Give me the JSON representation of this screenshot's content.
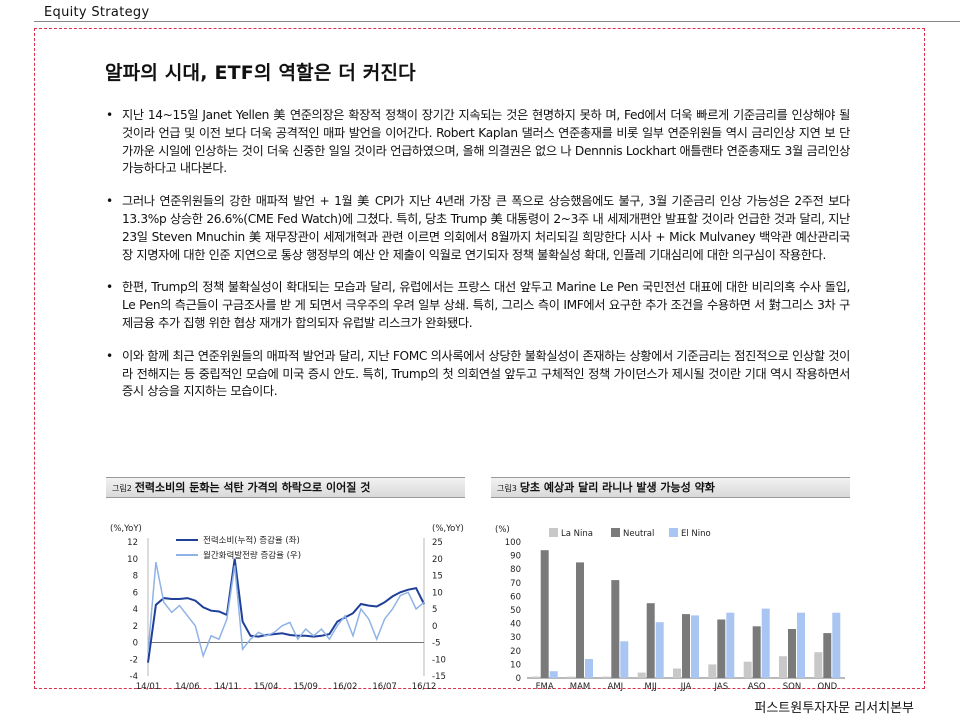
{
  "header": {
    "section_label": "Equity Strategy"
  },
  "title": "알파의 시대, ETF의 역할은 더 커진다",
  "bullets": [
    "지난 14~15일 Janet Yellen 美 연준의장은 확장적 정책이 장기간 지속되는 것은 현명하지 못하 며, Fed에서 더욱 빠르게 기준금리를 인상해야 될 것이라 언급 및 이전 보다 더욱 공격적인 매파 발언을 이어간다. Robert Kaplan 댈러스 연준총재를 비롯 일부 연준위원들 역시 금리인상 지연 보 단 가까운 시일에 인상하는 것이 더욱 신중한 일일 것이라 언급하였으며, 올해 의결권은 없으 나 Dennnis Lockhart 애틀랜타 연준총재도 3월 금리인상 가능하다고 내다본다.",
    "그러나 연준위원들의 강한 매파적 발언 + 1월 美 CPI가 지난 4년래 가장 큰 폭으로 상승했음에도 불구, 3월 기준금리 인상 가능성은 2주전 보다 13.3%p 상승한 26.6%(CME Fed Watch)에 그쳤다. 특히, 당초 Trump 美 대통령이 2~3주 내 세제개편안 발표할 것이라 언급한 것과 달리, 지난 23일 Steven Mnuchin 美 재무장관이 세제개혁과 관련 이르면 의회에서 8월까지 처리되길 희망한다 시사 + Mick Mulvaney 백악관 예산관리국장 지명자에 대한 인준 지연으로 통상 행정부의 예산 안 제출이 익월로 연기되자 정책 불확실성 확대, 인플레 기대심리에 대한 의구심이 작용한다.",
    "한편, Trump의 정책 불확실성이 확대되는 모습과 달리, 유럽에서는 프랑스 대선 앞두고 Marine Le Pen 국민전선 대표에 대한 비리의혹 수사 돌입, Le Pen의 측근들이 구금조사를 받 게 되면서 극우주의 우려 일부 상쇄. 특히, 그리스 측이 IMF에서 요구한 추가 조건을 수용하면 서 對그리스 3차 구제금융 추가 집행 위한 협상 재개가 합의되자 유럽발 리스크가 완화됐다.",
    "이와 함께 최근 연준위원들의 매파적 발언과 달리, 지난 FOMC 의사록에서 상당한 불확실성이 존재하는 상황에서 기준금리는 점진적으로 인상할 것이라 전해지는 등 중립적인 모습에 미국 증시 안도. 특히, Trump의 첫 의회연설 앞두고 구체적인 정책 가이던스가 제시될 것이란 기대 역시 작용하면서 증시 상승을 지지하는 모습이다."
  ],
  "bullet_marker": "•",
  "charts": [
    {
      "fig_label": "그림2",
      "title": "전력소비의 둔화는 석탄 가격의 하락으로 이어질 것"
    },
    {
      "fig_label": "그림3",
      "title": "당초 예상과 달리 라니나 발생 가능성 약화"
    }
  ],
  "chart_data": [
    {
      "type": "line",
      "title": "전력소비의 둔화는 석탄 가격의 하락으로 이어질 것",
      "y_left_unit": "(%,YoY)",
      "y_right_unit": "(%,YoY)",
      "ylim_left": [
        -4,
        12
      ],
      "ylim_right": [
        -15,
        25
      ],
      "yticks_left": [
        -4,
        -2,
        0,
        2,
        4,
        6,
        8,
        10,
        12
      ],
      "yticks_right": [
        -15,
        -10,
        -5,
        0,
        5,
        10,
        15,
        20,
        25
      ],
      "x_tick_labels": [
        "14/01",
        "14/06",
        "14/11",
        "15/04",
        "15/09",
        "16/02",
        "16/07",
        "16/12"
      ],
      "x_tick_index": [
        0,
        5,
        10,
        15,
        20,
        25,
        30,
        35
      ],
      "series": [
        {
          "name": "전력소비(누적) 증감율 (좌)",
          "axis": "left",
          "color": "#1f3f99",
          "values": [
            -2.4,
            4.5,
            5.3,
            5.2,
            5.2,
            5.3,
            5.0,
            4.2,
            3.8,
            3.7,
            3.3,
            10.0,
            2.5,
            0.8,
            0.7,
            0.9,
            1.0,
            1.1,
            0.9,
            0.8,
            0.8,
            0.7,
            0.8,
            1.0,
            2.5,
            3.0,
            3.5,
            4.6,
            4.4,
            4.3,
            4.8,
            5.5,
            6.0,
            6.3,
            6.5,
            4.6
          ]
        },
        {
          "name": "월간화력발전량 증감율 (우)",
          "axis": "right",
          "color": "#8fb3e6",
          "values": [
            -8.0,
            19.0,
            7.0,
            4.0,
            6.0,
            3.0,
            0.0,
            -9.0,
            -3.0,
            -4.0,
            2.0,
            18.0,
            -7.0,
            -4.0,
            -2.0,
            -3.0,
            -2.0,
            0.0,
            1.0,
            -4.0,
            -1.0,
            -3.0,
            -1.0,
            -4.0,
            0.0,
            3.0,
            -3.0,
            5.0,
            2.0,
            -4.0,
            2.0,
            5.0,
            9.0,
            10.0,
            5.0,
            7.0
          ]
        }
      ]
    },
    {
      "type": "bar",
      "title": "당초 예상과 달리 라니나 발생 가능성 약화",
      "y_unit": "(%)",
      "ylim": [
        0,
        100
      ],
      "yticks": [
        0,
        10,
        20,
        30,
        40,
        50,
        60,
        70,
        80,
        90,
        100
      ],
      "categories": [
        "FMA",
        "MAM",
        "AMJ",
        "MJJ",
        "JJA",
        "JAS",
        "ASO",
        "SON",
        "OND"
      ],
      "series": [
        {
          "name": "La Nina",
          "color": "#c8c8c8",
          "values": [
            1,
            1,
            1,
            4,
            7,
            10,
            12,
            16,
            19
          ]
        },
        {
          "name": "Neutral",
          "color": "#7a7a7a",
          "values": [
            94,
            85,
            72,
            55,
            47,
            43,
            38,
            36,
            33
          ]
        },
        {
          "name": "El Nino",
          "color": "#a9c5f2",
          "values": [
            5,
            14,
            27,
            41,
            46,
            48,
            51,
            48,
            48
          ]
        }
      ],
      "legend": "top"
    }
  ],
  "footer": {
    "source_label": "퍼스트원투자자문 리서치본부"
  }
}
